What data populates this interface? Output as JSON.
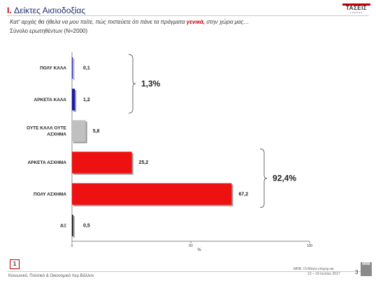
{
  "header": {
    "section_number": "I.",
    "title": "Δείκτες Αισιοδοξίας",
    "question_before": "Κατ' αρχάς θα ήθελα να μου πείτε, πώς πιστεύετε ότι πάνε τα πράγματα ",
    "question_highlight": "γενικά,",
    "question_after": " στην χώρα μας…",
    "base": "Σύνολο ερωτηθέντων (N=2000)"
  },
  "logo": {
    "name": "ΤΑΣΕΙΣ",
    "sub": "TRENDS"
  },
  "chart_data": {
    "type": "bar",
    "orientation": "horizontal",
    "categories": [
      "ΠΟΛΥ ΚΑΛΑ",
      "ΑΡΚΕΤΑ ΚΑΛΑ",
      "ΟΥΤΕ ΚΑΛΑ ΟΥΤΕ ΑΣΧΗΜΑ",
      "ΑΡΚΕΤΑ ΑΣΧΗΜΑ",
      "ΠΟΛΥ ΑΣΧΗΜΑ",
      "ΔΞ"
    ],
    "values": [
      0.1,
      1.2,
      5.8,
      25.2,
      67.2,
      0.5
    ],
    "labels": [
      "0,1",
      "1,2",
      "5,8",
      "25,2",
      "67,2",
      "0,5"
    ],
    "colors": [
      "#1a1aa8",
      "#1a1aa8",
      "#c0c0c0",
      "#ee1111",
      "#ee1111",
      "#111111"
    ],
    "xlim": [
      0,
      100
    ],
    "xticks": [
      0,
      50,
      100
    ],
    "xtick_labels": [
      "0",
      "50",
      "100"
    ],
    "xlabel": "%",
    "ylabel": "",
    "groups": [
      {
        "label": "1,3%",
        "from": 0,
        "to": 1
      },
      {
        "label": "92,4%",
        "from": 3,
        "to": 4
      }
    ]
  },
  "footer": {
    "page_box": "1",
    "left": "Κοινωνικό, Πολιτικό & Οικονομικό περ.Βάλλον",
    "right_line1": "MRB, Οι Μάγοι επιχειρ.ακ",
    "right_line2": "10 – 19 Ιουλίου 2017",
    "page_number": "3",
    "mrb_logo": "MRB"
  }
}
